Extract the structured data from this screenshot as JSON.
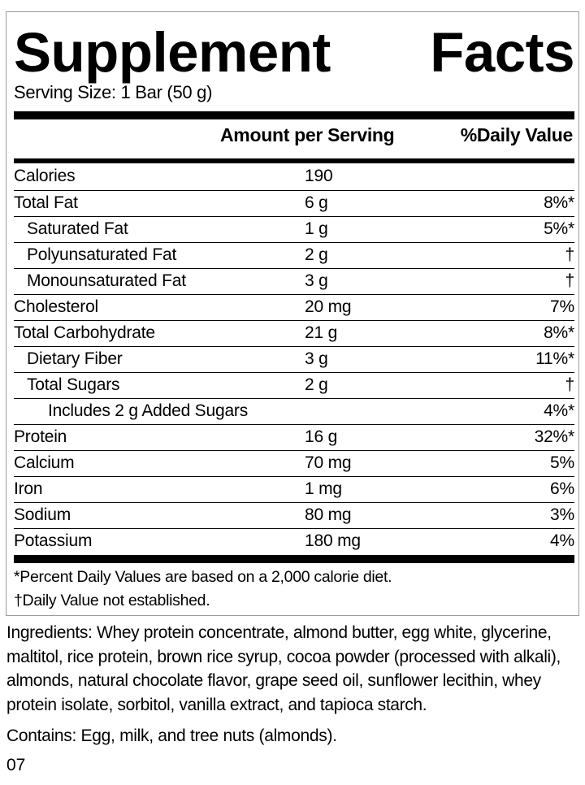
{
  "title_left": "Supplement",
  "title_right": "Facts",
  "serving_size": "Serving Size: 1 Bar (50 g)",
  "header": {
    "amount": "Amount per Serving",
    "daily_value": "%Daily Value"
  },
  "rows": [
    {
      "label": "Calories",
      "amount": "190",
      "dv": "",
      "indent": 0
    },
    {
      "label": "Total Fat",
      "amount": "6 g",
      "dv": "8%*",
      "indent": 0
    },
    {
      "label": "Saturated Fat",
      "amount": "1 g",
      "dv": "5%*",
      "indent": 1
    },
    {
      "label": "Polyunsaturated Fat",
      "amount": "2 g",
      "dv": "†",
      "indent": 1
    },
    {
      "label": "Monounsaturated Fat",
      "amount": "3 g",
      "dv": "†",
      "indent": 1
    },
    {
      "label": "Cholesterol",
      "amount": "20 mg",
      "dv": "7%",
      "indent": 0
    },
    {
      "label": "Total Carbohydrate",
      "amount": "21 g",
      "dv": "8%*",
      "indent": 0
    },
    {
      "label": "Dietary Fiber",
      "amount": "3 g",
      "dv": "11%*",
      "indent": 1
    },
    {
      "label": "Total Sugars",
      "amount": "2 g",
      "dv": "†",
      "indent": 1
    },
    {
      "label": "Includes 2 g Added Sugars",
      "amount": "",
      "dv": "4%*",
      "indent": 2
    },
    {
      "label": "Protein",
      "amount": "16 g",
      "dv": "32%*",
      "indent": 0
    },
    {
      "label": "Calcium",
      "amount": "70 mg",
      "dv": "5%",
      "indent": 0
    },
    {
      "label": "Iron",
      "amount": "1 mg",
      "dv": "6%",
      "indent": 0
    },
    {
      "label": "Sodium",
      "amount": "80 mg",
      "dv": "3%",
      "indent": 0
    },
    {
      "label": "Potassium",
      "amount": "180 mg",
      "dv": "4%",
      "indent": 0
    }
  ],
  "footnotes": {
    "percent": "*Percent Daily Values are based on a 2,000 calorie diet.",
    "dagger": "†Daily Value not established."
  },
  "ingredients": "Ingredients: Whey protein concentrate, almond butter, egg white, glycerine, maltitol, rice protein, brown rice syrup, cocoa powder (processed with alkali), almonds, natural chocolate flavor, grape seed oil, sunflower lecithin, whey protein isolate, sorbitol, vanilla extract, and tapioca starch.",
  "contains": "Contains: Egg, milk, and tree nuts (almonds).",
  "code": "07"
}
